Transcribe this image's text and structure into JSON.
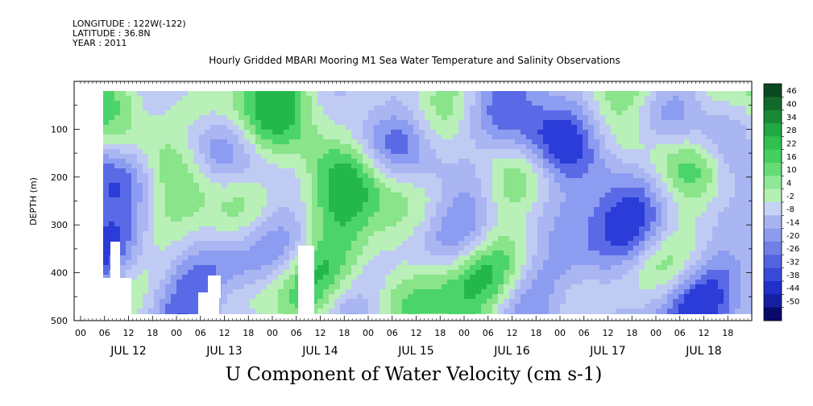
{
  "header": {
    "longitude": "LONGITUDE : 122W(-122)",
    "latitude": "LATITUDE : 36.8N",
    "year": "YEAR : 2011",
    "title": "Hourly Gridded MBARI Mooring M1 Sea Water Temperature and Salinity Observations"
  },
  "chart_data": {
    "type": "heatmap",
    "title": "Hourly Gridded MBARI Mooring M1 Sea Water Temperature and Salinity Observations",
    "variable_title": "U Component of Water Velocity (cm s-1)",
    "ylabel": "DEPTH (m)",
    "ylim": [
      500,
      0
    ],
    "yticks": [
      100,
      200,
      300,
      400,
      500
    ],
    "xlabel": "",
    "x_hour_ticks": [
      "00",
      "06",
      "12",
      "18",
      "00",
      "06",
      "12",
      "18",
      "00",
      "06",
      "12",
      "18",
      "00",
      "06",
      "12",
      "18",
      "00",
      "06",
      "12",
      "18",
      "00",
      "06",
      "12",
      "18",
      "00",
      "06",
      "12",
      "18"
    ],
    "x_day_labels": [
      "JUL 12",
      "JUL 13",
      "JUL 14",
      "JUL 15",
      "JUL 16",
      "JUL 17",
      "JUL 18"
    ],
    "data_range": {
      "start": "JUL 12 06",
      "end": "JUL 18 23",
      "depth_min": 20,
      "depth_max": 485
    },
    "colorbar": {
      "labels": [
        "46",
        "40",
        "34",
        "28",
        "22",
        "16",
        "10",
        "4",
        "-2",
        "-8",
        "-14",
        "-20",
        "-26",
        "-32",
        "-38",
        "-44",
        "-50"
      ],
      "min": -50,
      "max": 50
    },
    "colors": {
      "strong_positive": "#0a5a2a",
      "positive": "#3ccf5c",
      "weak_positive": "#a8f0a8",
      "weak_negative": "#b8c4f0",
      "negative": "#8c9cf0",
      "strong_negative": "#2c3cd8",
      "extreme_negative": "#0a0a6a"
    }
  }
}
